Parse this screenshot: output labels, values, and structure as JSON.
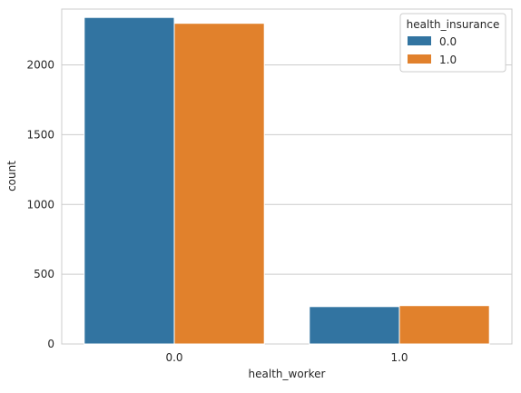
{
  "chart_data": {
    "type": "bar",
    "title": "",
    "xlabel": "health_worker",
    "ylabel": "count",
    "categories": [
      "0.0",
      "1.0"
    ],
    "series": [
      {
        "name": "0.0",
        "values": [
          2340,
          268
        ],
        "color": "#3274a1"
      },
      {
        "name": "1.0",
        "values": [
          2298,
          275
        ],
        "color": "#e1812c"
      }
    ],
    "ylim": [
      0,
      2400
    ],
    "yticks": [
      0,
      500,
      1000,
      1500,
      2000
    ],
    "grid": true,
    "legend": {
      "title": "health_insurance",
      "placement": "top-right"
    },
    "background": "#ffffff",
    "grid_color": "#cccccc",
    "axis_color": "#cccccc"
  }
}
